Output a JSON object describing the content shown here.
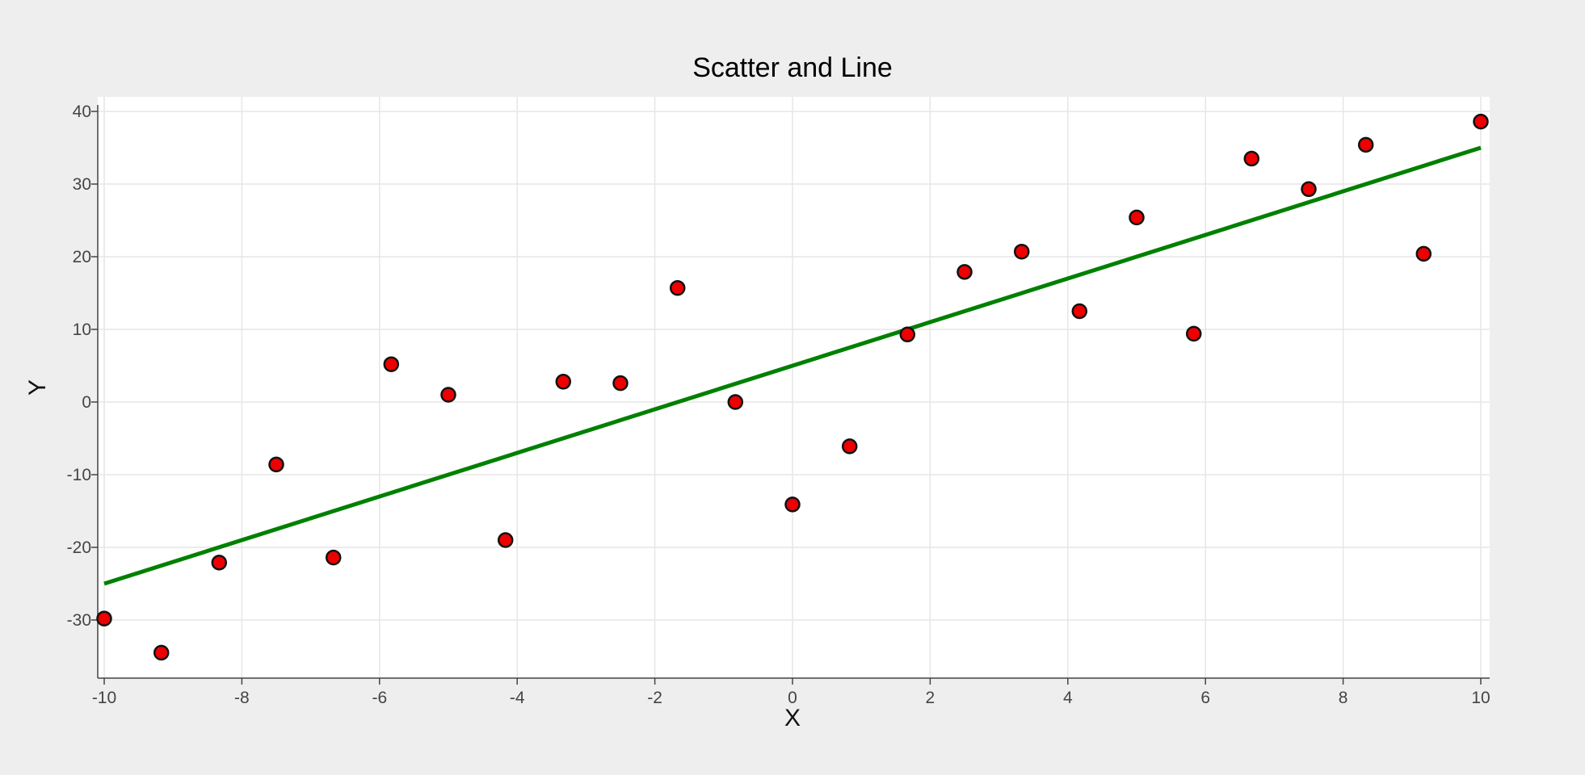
{
  "chart_data": {
    "type": "scatter",
    "title": "Scatter and Line",
    "xlabel": "X",
    "ylabel": "Y",
    "xlim": [
      -10,
      10
    ],
    "ylim": [
      -38,
      42
    ],
    "grid": true,
    "x_ticks": [
      -10,
      -8,
      -6,
      -4,
      -2,
      0,
      2,
      4,
      6,
      8,
      10
    ],
    "y_ticks": [
      -30,
      -20,
      -10,
      0,
      10,
      20,
      30,
      40
    ],
    "series": [
      {
        "name": "scatter",
        "type": "scatter",
        "marker_fill": "#ee0000",
        "marker_edge": "#111111",
        "x": [
          -10,
          -9.17,
          -8.33,
          -7.5,
          -6.67,
          -5.83,
          -5,
          -4.17,
          -3.33,
          -2.5,
          -1.67,
          -0.83,
          0,
          0.83,
          1.67,
          2.5,
          3.33,
          4.17,
          5,
          5.83,
          6.67,
          7.5,
          8.33,
          9.17,
          10
        ],
        "y": [
          -29.8,
          -34.5,
          -22.1,
          -8.6,
          -21.4,
          5.2,
          1.0,
          -19.0,
          2.8,
          2.6,
          15.7,
          0.0,
          -14.1,
          -6.1,
          9.3,
          17.9,
          20.7,
          12.5,
          25.4,
          9.4,
          33.5,
          29.3,
          35.4,
          20.4,
          38.6
        ]
      },
      {
        "name": "line",
        "type": "line",
        "color": "#008000",
        "x": [
          -10,
          10
        ],
        "y": [
          -25,
          35
        ]
      }
    ]
  }
}
